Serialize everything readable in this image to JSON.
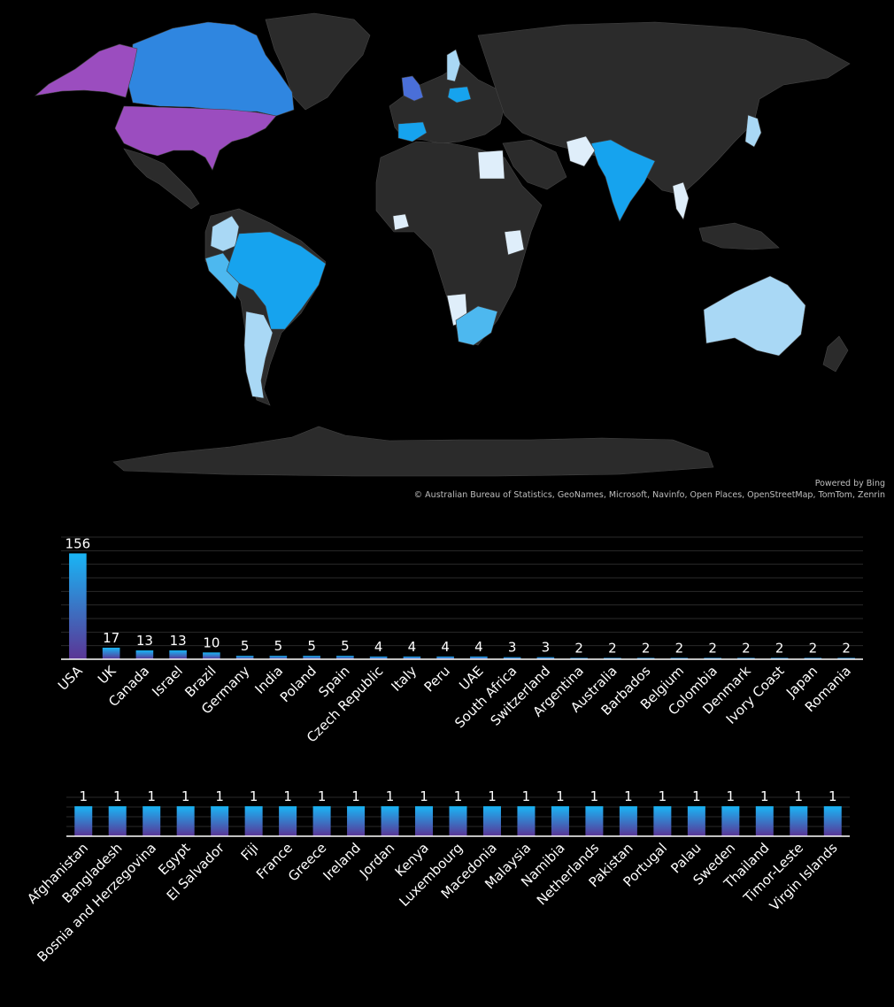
{
  "attribution": {
    "powered_by": "Powered by Bing",
    "credits": "© Australian Bureau of Statistics, GeoNames, Microsoft, Navinfo, Open Places, OpenStreetMap, TomTom, Zenrin"
  },
  "colors": {
    "background": "#000000",
    "land_no_data": "#2b2b2b",
    "highest": "#9b4dbf",
    "high": "#4a6fd8",
    "mid_high": "#2f86e0",
    "mid": "#16a3ee",
    "mid_low": "#4db8ef",
    "low": "#a9d8f5",
    "lowest": "#dfeefa",
    "bar_top": "#19b5f5",
    "bar_bottom": "#5b3595",
    "gridline": "#2a2a2a",
    "axis": "#ffffff"
  },
  "map": {
    "type": "filled-map",
    "highlighted_regions": [
      {
        "region": "USA",
        "level": "highest"
      },
      {
        "region": "Alaska",
        "level": "highest"
      },
      {
        "region": "Canada",
        "level": "mid_high"
      },
      {
        "region": "UK",
        "level": "high"
      },
      {
        "region": "Brazil",
        "level": "mid"
      },
      {
        "region": "India",
        "level": "mid"
      },
      {
        "region": "Poland",
        "level": "mid"
      },
      {
        "region": "Spain",
        "level": "mid"
      },
      {
        "region": "Peru",
        "level": "mid_low"
      },
      {
        "region": "South Africa",
        "level": "mid_low"
      },
      {
        "region": "Argentina",
        "level": "low"
      },
      {
        "region": "Australia",
        "level": "low"
      },
      {
        "region": "Colombia",
        "level": "low"
      },
      {
        "region": "Egypt",
        "level": "lowest"
      },
      {
        "region": "Kenya",
        "level": "lowest"
      },
      {
        "region": "Namibia",
        "level": "lowest"
      },
      {
        "region": "Afghanistan",
        "level": "lowest"
      },
      {
        "region": "Ivory Coast",
        "level": "lowest"
      },
      {
        "region": "Thailand",
        "level": "lowest"
      },
      {
        "region": "Japan",
        "level": "low"
      },
      {
        "region": "Sweden",
        "level": "low"
      }
    ]
  },
  "chart_data": [
    {
      "type": "bar",
      "categories": [
        "USA",
        "UK",
        "Canada",
        "Israel",
        "Brazil",
        "Germany",
        "India",
        "Poland",
        "Spain",
        "Czech Republic",
        "Italy",
        "Peru",
        "UAE",
        "South Africa",
        "Switzerland",
        "Argentina",
        "Australia",
        "Barbados",
        "Belgium",
        "Colombia",
        "Denmark",
        "Ivory Coast",
        "Japan",
        "Romania"
      ],
      "values": [
        156,
        17,
        13,
        13,
        10,
        5,
        5,
        5,
        5,
        4,
        4,
        4,
        4,
        3,
        3,
        2,
        2,
        2,
        2,
        2,
        2,
        2,
        2,
        2
      ],
      "ylim": [
        0,
        180
      ],
      "grid": true,
      "data_labels": true,
      "tick_rotation": -45
    },
    {
      "type": "bar",
      "categories": [
        "Afghanistan",
        "Bangladesh",
        "Bosnia and Herzegovina",
        "Egypt",
        "El Salvador",
        "Fiji",
        "France",
        "Greece",
        "Ireland",
        "Jordan",
        "Kenya",
        "Luxembourg",
        "Macedonia",
        "Malaysia",
        "Namibia",
        "Netherlands",
        "Pakistan",
        "Portugal",
        "Palau",
        "Sweden",
        "Thailand",
        "Timor-Leste",
        "Virgin Islands"
      ],
      "values": [
        1,
        1,
        1,
        1,
        1,
        1,
        1,
        1,
        1,
        1,
        1,
        1,
        1,
        1,
        1,
        1,
        1,
        1,
        1,
        1,
        1,
        1,
        1
      ],
      "ylim": [
        0,
        1.3
      ],
      "grid": true,
      "data_labels": true,
      "tick_rotation": -45
    }
  ]
}
